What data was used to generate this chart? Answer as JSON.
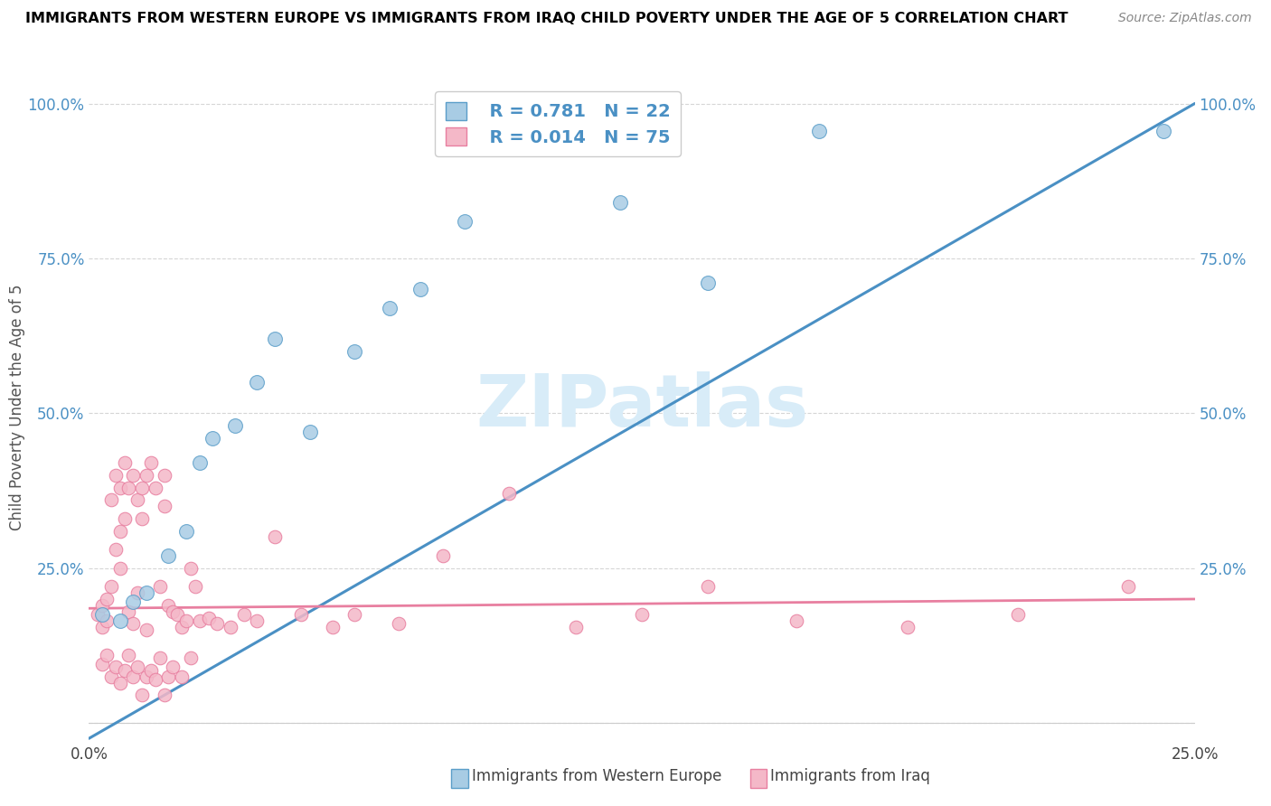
{
  "title": "IMMIGRANTS FROM WESTERN EUROPE VS IMMIGRANTS FROM IRAQ CHILD POVERTY UNDER THE AGE OF 5 CORRELATION CHART",
  "source": "Source: ZipAtlas.com",
  "ylabel": "Child Poverty Under the Age of 5",
  "xlim": [
    0,
    0.25
  ],
  "ylim": [
    -0.02,
    1.05
  ],
  "plot_ylim": [
    0,
    1.0
  ],
  "xticks": [
    0.0,
    0.05,
    0.1,
    0.15,
    0.2,
    0.25
  ],
  "yticks": [
    0.0,
    0.25,
    0.5,
    0.75,
    1.0
  ],
  "xticklabels": [
    "0.0%",
    "",
    "",
    "",
    "",
    "25.0%"
  ],
  "legend_label1": "Immigrants from Western Europe",
  "legend_label2": "Immigrants from Iraq",
  "R1": "0.781",
  "N1": "22",
  "R2": "0.014",
  "N2": "75",
  "color_blue": "#a8cce4",
  "color_pink": "#f4b8c8",
  "color_blue_dark": "#5b9ec9",
  "color_pink_dark": "#e87fa0",
  "color_blue_line": "#4a90c4",
  "color_pink_line": "#e87fa0",
  "color_text_blue": "#4a90c4",
  "watermark_color": "#d8ecf8",
  "blue_x": [
    0.003,
    0.007,
    0.01,
    0.013,
    0.018,
    0.022,
    0.025,
    0.028,
    0.033,
    0.038,
    0.042,
    0.05,
    0.06,
    0.068,
    0.075,
    0.085,
    0.095,
    0.108,
    0.12,
    0.14,
    0.165,
    0.243
  ],
  "blue_y": [
    0.175,
    0.165,
    0.195,
    0.21,
    0.27,
    0.31,
    0.42,
    0.46,
    0.48,
    0.55,
    0.62,
    0.47,
    0.6,
    0.67,
    0.7,
    0.81,
    0.955,
    0.955,
    0.84,
    0.71,
    0.955,
    0.955
  ],
  "pink_x": [
    0.002,
    0.003,
    0.003,
    0.004,
    0.004,
    0.005,
    0.005,
    0.006,
    0.006,
    0.007,
    0.007,
    0.007,
    0.008,
    0.008,
    0.009,
    0.009,
    0.01,
    0.01,
    0.011,
    0.011,
    0.012,
    0.012,
    0.013,
    0.013,
    0.014,
    0.015,
    0.016,
    0.017,
    0.017,
    0.018,
    0.019,
    0.02,
    0.021,
    0.022,
    0.023,
    0.024,
    0.025,
    0.027,
    0.029,
    0.032,
    0.035,
    0.038,
    0.042,
    0.048,
    0.055,
    0.06,
    0.07,
    0.08,
    0.095,
    0.11,
    0.125,
    0.14,
    0.16,
    0.185,
    0.21,
    0.235,
    0.003,
    0.004,
    0.005,
    0.006,
    0.007,
    0.008,
    0.009,
    0.01,
    0.011,
    0.012,
    0.013,
    0.014,
    0.015,
    0.016,
    0.017,
    0.018,
    0.019,
    0.021,
    0.023
  ],
  "pink_y": [
    0.175,
    0.155,
    0.19,
    0.165,
    0.2,
    0.22,
    0.36,
    0.28,
    0.4,
    0.25,
    0.31,
    0.38,
    0.33,
    0.42,
    0.18,
    0.38,
    0.16,
    0.4,
    0.36,
    0.21,
    0.33,
    0.38,
    0.15,
    0.4,
    0.42,
    0.38,
    0.22,
    0.4,
    0.35,
    0.19,
    0.18,
    0.175,
    0.155,
    0.165,
    0.25,
    0.22,
    0.165,
    0.17,
    0.16,
    0.155,
    0.175,
    0.165,
    0.3,
    0.175,
    0.155,
    0.175,
    0.16,
    0.27,
    0.37,
    0.155,
    0.175,
    0.22,
    0.165,
    0.155,
    0.175,
    0.22,
    0.095,
    0.11,
    0.075,
    0.09,
    0.065,
    0.085,
    0.11,
    0.075,
    0.09,
    0.045,
    0.075,
    0.085,
    0.07,
    0.105,
    0.045,
    0.075,
    0.09,
    0.075,
    0.105
  ],
  "blue_line_x0": 0.0,
  "blue_line_y0": -0.025,
  "blue_line_x1": 0.25,
  "blue_line_y1": 1.0,
  "pink_line_x0": 0.0,
  "pink_line_y0": 0.185,
  "pink_line_x1": 0.25,
  "pink_line_y1": 0.2
}
